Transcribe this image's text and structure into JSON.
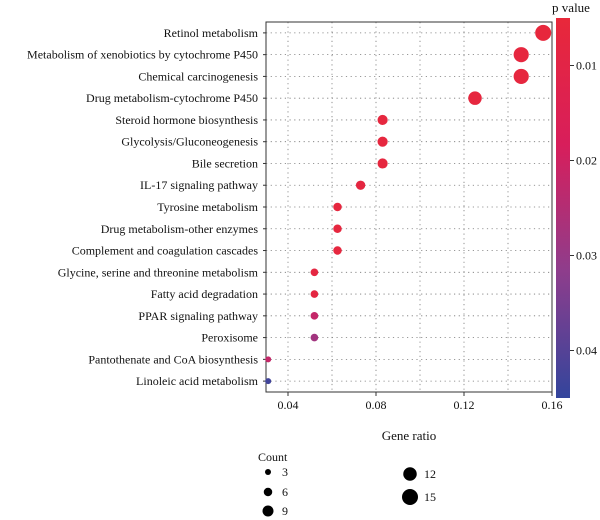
{
  "chart_data": {
    "type": "scatter",
    "xlabel": "Gene ratio",
    "xlim": [
      0.03,
      0.16
    ],
    "xticks": [
      0.04,
      0.08,
      0.12,
      0.16
    ],
    "xtick_labels": [
      "0.04",
      "0.08",
      "0.12",
      "0.16"
    ],
    "grid": true,
    "categories": [
      "Retinol metabolism",
      "Metabolism of xenobiotics by cytochrome P450",
      "Chemical carcinogenesis",
      "Drug metabolism-cytochrome P450",
      "Steroid hormone biosynthesis",
      "Glycolysis/Gluconeogenesis",
      "Bile secretion",
      "IL-17 signaling pathway",
      "Tyrosine metabolism",
      "Drug metabolism-other enzymes",
      "Complement and coagulation cascades",
      "Glycine, serine and threonine metabolism",
      "Fatty acid degradation",
      "PPAR signaling pathway",
      "Peroxisome",
      "Pantothenate and CoA biosynthesis",
      "Linoleic acid metabolism"
    ],
    "points": [
      {
        "term": "Retinol metabolism",
        "gene_ratio": 0.156,
        "count": 15,
        "p_value": 0.006
      },
      {
        "term": "Metabolism of xenobiotics by cytochrome P450",
        "gene_ratio": 0.146,
        "count": 14,
        "p_value": 0.007
      },
      {
        "term": "Chemical carcinogenesis",
        "gene_ratio": 0.146,
        "count": 14,
        "p_value": 0.007
      },
      {
        "term": "Drug metabolism-cytochrome P450",
        "gene_ratio": 0.125,
        "count": 12,
        "p_value": 0.007
      },
      {
        "term": "Steroid hormone biosynthesis",
        "gene_ratio": 0.083,
        "count": 8,
        "p_value": 0.007
      },
      {
        "term": "Glycolysis/Gluconeogenesis",
        "gene_ratio": 0.083,
        "count": 8,
        "p_value": 0.007
      },
      {
        "term": "Bile secretion",
        "gene_ratio": 0.083,
        "count": 8,
        "p_value": 0.007
      },
      {
        "term": "IL-17 signaling pathway",
        "gene_ratio": 0.073,
        "count": 7,
        "p_value": 0.008
      },
      {
        "term": "Tyrosine metabolism",
        "gene_ratio": 0.0625,
        "count": 6,
        "p_value": 0.007
      },
      {
        "term": "Drug metabolism-other enzymes",
        "gene_ratio": 0.0625,
        "count": 6,
        "p_value": 0.007
      },
      {
        "term": "Complement and coagulation cascades",
        "gene_ratio": 0.0625,
        "count": 6,
        "p_value": 0.007
      },
      {
        "term": "Glycine, serine and threonine metabolism",
        "gene_ratio": 0.052,
        "count": 5,
        "p_value": 0.008
      },
      {
        "term": "Fatty acid degradation",
        "gene_ratio": 0.052,
        "count": 5,
        "p_value": 0.008
      },
      {
        "term": "PPAR signaling pathway",
        "gene_ratio": 0.052,
        "count": 5,
        "p_value": 0.022
      },
      {
        "term": "Peroxisome",
        "gene_ratio": 0.052,
        "count": 5,
        "p_value": 0.028
      },
      {
        "term": "Pantothenate and CoA biosynthesis",
        "gene_ratio": 0.031,
        "count": 3,
        "p_value": 0.022
      },
      {
        "term": "Linoleic acid metabolism",
        "gene_ratio": 0.031,
        "count": 3,
        "p_value": 0.043
      }
    ],
    "color_legend": {
      "title": "p value",
      "range": [
        0.005,
        0.045
      ],
      "ticks": [
        0.01,
        0.02,
        0.03,
        0.04
      ],
      "tick_labels": [
        "0.01",
        "0.02",
        "0.03",
        "0.04"
      ],
      "colors": [
        "#e8283a",
        "#d81e5b",
        "#8e3d8c",
        "#33459c"
      ]
    },
    "size_legend": {
      "title": "Count",
      "values": [
        3,
        6,
        9,
        12,
        15
      ],
      "labels": [
        "3",
        "6",
        "9",
        "12",
        "15"
      ]
    }
  }
}
